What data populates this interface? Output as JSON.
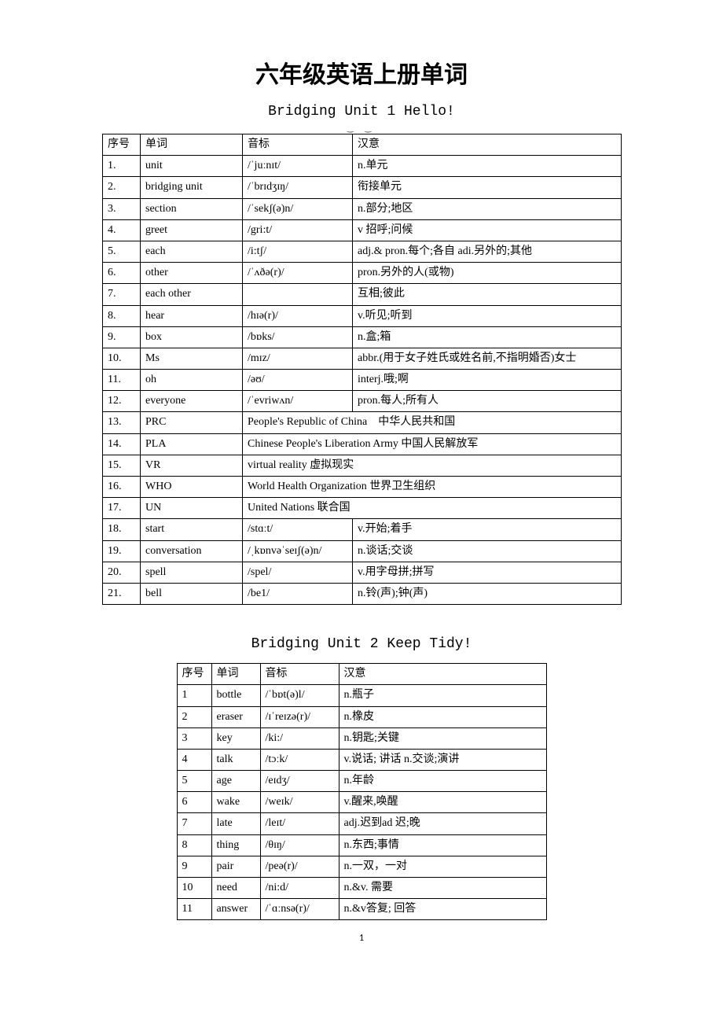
{
  "page": {
    "main_title": "六年级英语上册单词",
    "page_number": "1"
  },
  "unit1": {
    "title": "Bridging Unit 1 Hello!",
    "columns": {
      "c1": "序号",
      "c2": "单词",
      "c3": "音标",
      "c4": "汉意"
    },
    "col_widths": {
      "c1": 48,
      "c2": 130,
      "c3": 140,
      "c4": 342
    },
    "rows": [
      {
        "n": "1.",
        "w": "unit",
        "p": "/ˈjuːnɪt/",
        "m": "n.单元"
      },
      {
        "n": "2.",
        "w": "bridging unit",
        "p": "/ˈbrɪdʒɪŋ/",
        "m": "衔接单元"
      },
      {
        "n": "3.",
        "w": "section",
        "p": "/ˈsekʃ(ə)n/",
        "m": "n.部分;地区"
      },
      {
        "n": "4.",
        "w": "greet",
        "p": "/gri:t/",
        "m": "v 招呼;问候"
      },
      {
        "n": "5.",
        "w": "each",
        "p": "/i:tʃ/",
        "m": "adj.& pron.每个;各自 adi.另外的;其他"
      },
      {
        "n": "6.",
        "w": "other",
        "p": "/ˈʌðə(r)/",
        "m": "pron.另外的人(或物)"
      },
      {
        "n": "7.",
        "w": "each other",
        "p": "",
        "m": "互相;彼此"
      },
      {
        "n": "8.",
        "w": "hear",
        "p": "/hɪə(r)/",
        "m": "v.听见;听到"
      },
      {
        "n": "9.",
        "w": "box",
        "p": "/bɒks/",
        "m": "n.盒;箱"
      },
      {
        "n": "10.",
        "w": "Ms",
        "p": "/mɪz/",
        "m": "abbr.(用于女子姓氏或姓名前,不指明婚否)女士"
      },
      {
        "n": "11.",
        "w": "oh",
        "p": "/əʊ/",
        "m": "interj.哦;啊"
      },
      {
        "n": "12.",
        "w": "everyone",
        "p": "/ˈevriwʌn/",
        "m": "pron.每人;所有人"
      },
      {
        "n": "13.",
        "w": "PRC",
        "span": "People's Republic of China　中华人民共和国"
      },
      {
        "n": "14.",
        "w": "PLA",
        "span": "Chinese People's Liberation Army 中国人民解放军"
      },
      {
        "n": "15.",
        "w": "VR",
        "span": "virtual reality 虚拟现实"
      },
      {
        "n": "16.",
        "w": "WHO",
        "span": "World Health Organization 世界卫生组织"
      },
      {
        "n": "17.",
        "w": "UN",
        "span": "United Nations 联合国"
      },
      {
        "n": "18.",
        "w": "start",
        "p": "/stɑːt/",
        "m": "v.开始;着手"
      },
      {
        "n": "19.",
        "w": "conversation",
        "p": "/ˌkɒnvəˈseɪʃ(ə)n/",
        "m": "n.谈话;交谈"
      },
      {
        "n": "20.",
        "w": "spell",
        "p": "/spel/",
        "m": "v.用字母拼;拼写"
      },
      {
        "n": "21.",
        "w": "bell",
        "p": "/be1/",
        "m": "n.铃(声);钟(声)"
      }
    ]
  },
  "unit2": {
    "title": "Bridging Unit 2 Keep Tidy!",
    "columns": {
      "c1": "序号",
      "c2": "单词",
      "c3": "音标",
      "c4": "汉意"
    },
    "col_widths": {
      "c1": 44,
      "c2": 62,
      "c3": 100,
      "c4": 264
    },
    "rows": [
      {
        "n": "1",
        "w": "bottle",
        "p": "/ˈbɒt(ə)l/",
        "m": "n.瓶子"
      },
      {
        "n": "2",
        "w": "eraser",
        "p": "/ɪˈreɪzə(r)/",
        "m": "n.橡皮"
      },
      {
        "n": "3",
        "w": "key",
        "p": "/ki:/",
        "m": "n.钥匙;关键"
      },
      {
        "n": "4",
        "w": "talk",
        "p": "/tɔːk/",
        "m": "v.说话; 讲话 n.交谈;演讲"
      },
      {
        "n": "5",
        "w": "age",
        "p": "/eɪdʒ/",
        "m": "n.年龄"
      },
      {
        "n": "6",
        "w": "wake",
        "p": "/weɪk/",
        "m": "v.醒来,唤醒"
      },
      {
        "n": "7",
        "w": "late",
        "p": "/leɪt/",
        "m": "adj.迟到ad 迟;晚"
      },
      {
        "n": "8",
        "w": "thing",
        "p": "/θɪŋ/",
        "m": "n.东西;事情"
      },
      {
        "n": "9",
        "w": "pair",
        "p": "/peə(r)/",
        "m": "n.一双，一对"
      },
      {
        "n": "10",
        "w": "need",
        "p": "/ni:d/",
        "m": "n.&v. 需要"
      },
      {
        "n": "11",
        "w": "answer",
        "p": "/ˈɑːnsə(r)/",
        "m": "n.&v答复; 回答"
      }
    ]
  },
  "style": {
    "title_fontsize": 30,
    "subtitle_fontsize": 18,
    "table_fontsize": 14,
    "border_color": "#000000",
    "background_color": "#ffffff",
    "text_color": "#000000"
  }
}
